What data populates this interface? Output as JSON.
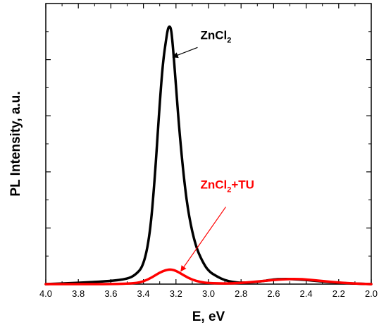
{
  "chart_data": {
    "type": "line",
    "xlabel": "E, eV",
    "ylabel": "PL Intensity, a.u.",
    "xlim": [
      4.0,
      2.0
    ],
    "x_reversed": true,
    "ylim": [
      0,
      1.0
    ],
    "xticks": [
      "4.0",
      "3.8",
      "3.6",
      "3.4",
      "3.2",
      "3.0",
      "2.8",
      "2.6",
      "2.4",
      "2.2",
      "2.0"
    ],
    "y_tick_labels_shown": false,
    "grid": false,
    "series": [
      {
        "name": "ZnCl2",
        "color": "#000000",
        "points": [
          [
            4.0,
            0.0
          ],
          [
            3.8,
            0.005
          ],
          [
            3.6,
            0.012
          ],
          [
            3.5,
            0.02
          ],
          [
            3.45,
            0.035
          ],
          [
            3.4,
            0.07
          ],
          [
            3.36,
            0.19
          ],
          [
            3.33,
            0.41
          ],
          [
            3.3,
            0.7
          ],
          [
            3.28,
            0.86
          ],
          [
            3.26,
            0.95
          ],
          [
            3.25,
            0.99
          ],
          [
            3.24,
            1.0
          ],
          [
            3.23,
            0.99
          ],
          [
            3.22,
            0.93
          ],
          [
            3.2,
            0.77
          ],
          [
            3.18,
            0.6
          ],
          [
            3.15,
            0.4
          ],
          [
            3.12,
            0.26
          ],
          [
            3.08,
            0.15
          ],
          [
            3.04,
            0.09
          ],
          [
            3.0,
            0.05
          ],
          [
            2.95,
            0.03
          ],
          [
            2.9,
            0.015
          ],
          [
            2.85,
            0.008
          ],
          [
            2.8,
            0.005
          ],
          [
            2.7,
            0.008
          ],
          [
            2.6,
            0.018
          ],
          [
            2.55,
            0.02
          ],
          [
            2.5,
            0.02
          ],
          [
            2.4,
            0.016
          ],
          [
            2.3,
            0.01
          ],
          [
            2.2,
            0.005
          ],
          [
            2.1,
            0.002
          ],
          [
            2.0,
            0.0
          ]
        ]
      },
      {
        "name": "ZnCl2+TU",
        "color": "#ff0000",
        "points": [
          [
            4.0,
            0.0
          ],
          [
            3.8,
            0.0
          ],
          [
            3.6,
            0.0
          ],
          [
            3.45,
            0.003
          ],
          [
            3.4,
            0.01
          ],
          [
            3.35,
            0.025
          ],
          [
            3.3,
            0.045
          ],
          [
            3.26,
            0.055
          ],
          [
            3.23,
            0.057
          ],
          [
            3.2,
            0.052
          ],
          [
            3.15,
            0.033
          ],
          [
            3.1,
            0.017
          ],
          [
            3.05,
            0.008
          ],
          [
            3.0,
            0.004
          ],
          [
            2.9,
            0.002
          ],
          [
            2.8,
            0.004
          ],
          [
            2.7,
            0.01
          ],
          [
            2.6,
            0.016
          ],
          [
            2.5,
            0.02
          ],
          [
            2.45,
            0.02
          ],
          [
            2.4,
            0.018
          ],
          [
            2.3,
            0.012
          ],
          [
            2.2,
            0.006
          ],
          [
            2.1,
            0.002
          ],
          [
            2.0,
            0.0
          ]
        ]
      }
    ],
    "annotations": [
      {
        "text": "ZnCl",
        "sub": "2",
        "suffix": "",
        "color": "#000000",
        "x": 3.05,
        "y": 0.95,
        "arrow_to": [
          3.22,
          0.88
        ]
      },
      {
        "text": "ZnCl",
        "sub": "2",
        "suffix": "+TU",
        "color": "#ff0000",
        "x": 3.05,
        "y": 0.37,
        "arrow_to": [
          3.17,
          0.05
        ]
      }
    ]
  }
}
